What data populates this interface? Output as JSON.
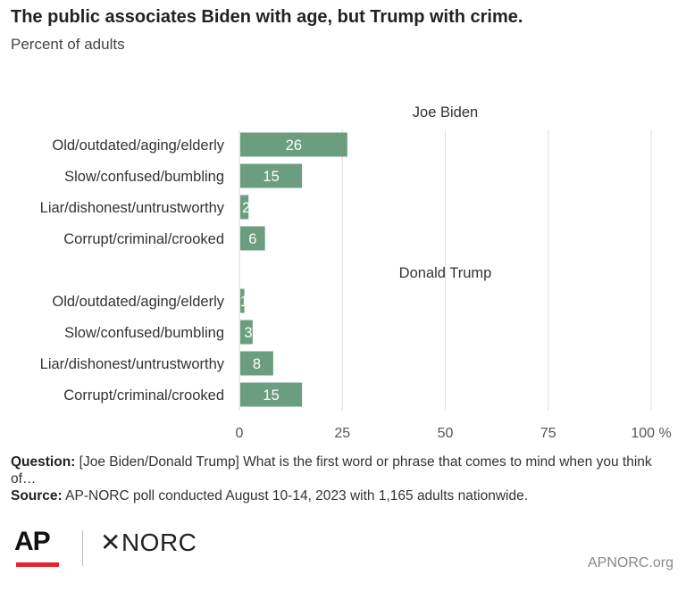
{
  "title": "The public associates Biden with age, but Trump with crime.",
  "subtitle": "Percent of adults",
  "chart_data": {
    "type": "bar",
    "orientation": "horizontal",
    "xlim": [
      0,
      100
    ],
    "x_ticks": [
      "0",
      "25",
      "50",
      "75",
      "100 %"
    ],
    "grid": true,
    "bar_color": "#6b9e7e",
    "panels": [
      {
        "name": "Joe Biden",
        "categories": [
          "Old/outdated/aging/elderly",
          "Slow/confused/bumbling",
          "Liar/dishonest/untrustworthy",
          "Corrupt/criminal/crooked"
        ],
        "values": [
          26,
          15,
          2,
          6
        ]
      },
      {
        "name": "Donald Trump",
        "categories": [
          "Old/outdated/aging/elderly",
          "Slow/confused/bumbling",
          "Liar/dishonest/untrustworthy",
          "Corrupt/criminal/crooked"
        ],
        "values": [
          1,
          3,
          8,
          15
        ]
      }
    ]
  },
  "notes": {
    "question_label": "Question:",
    "question": "[Joe Biden/Donald Trump] What is the first word or phrase that comes to mind when you think of…",
    "source_label": "Source:",
    "source": "AP-NORC poll conducted August 10-14, 2023 with 1,165 adults nationwide."
  },
  "footer": {
    "ap_logo": "AP",
    "norc_logo": "✕NORC",
    "site": "APNORC.org",
    "ap_red": "#e4222c"
  }
}
